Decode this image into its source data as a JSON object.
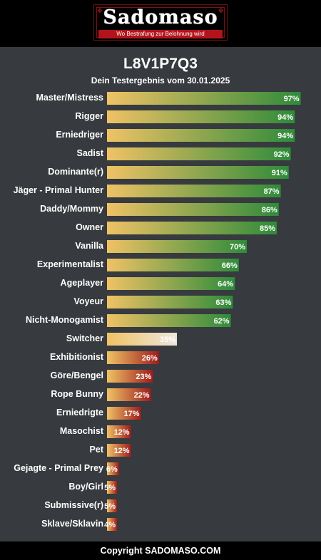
{
  "brand": {
    "name": "Sadomaso",
    "tagline": "Wo Bestrafung zur Belohnung wird"
  },
  "chart_data": {
    "type": "bar",
    "orientation": "horizontal",
    "title": "L8V1P7Q3",
    "subtitle": "Dein Testergebnis vom 30.01.2025",
    "unit": "%",
    "xlim": [
      0,
      100
    ],
    "grid": false,
    "categories": [
      "Master/Mistress",
      "Rigger",
      "Erniedriger",
      "Sadist",
      "Dominante(r)",
      "Jäger - Primal Hunter",
      "Daddy/Mommy",
      "Owner",
      "Vanilla",
      "Experimentalist",
      "Ageplayer",
      "Voyeur",
      "Nicht-Monogamist",
      "Switcher",
      "Exhibitionist",
      "Göre/Bengel",
      "Rope Bunny",
      "Erniedrigte",
      "Masochist",
      "Pet",
      "Gejagte - Primal Prey",
      "Boy/Girl",
      "Submissive(r)",
      "Sklave/Sklavin"
    ],
    "values": [
      97,
      94,
      94,
      92,
      91,
      87,
      86,
      85,
      70,
      66,
      64,
      63,
      62,
      35,
      26,
      23,
      22,
      17,
      12,
      12,
      6,
      5,
      5,
      4
    ],
    "value_labels": [
      "97%",
      "94%",
      "94%",
      "92%",
      "91%",
      "87%",
      "86%",
      "85%",
      "70%",
      "66%",
      "64%",
      "63%",
      "62%",
      "35%",
      "26%",
      "23%",
      "22%",
      "17%",
      "12%",
      "12%",
      "6%",
      "5%",
      "5%",
      "4%"
    ],
    "colors": {
      "start": "#f0c265",
      "high_end": "#2e8b3a",
      "mid_end": "#ece6dc",
      "low_end": "#9e1c1c"
    }
  },
  "footer": {
    "copyright": "Copyright SADOMASO.COM"
  }
}
